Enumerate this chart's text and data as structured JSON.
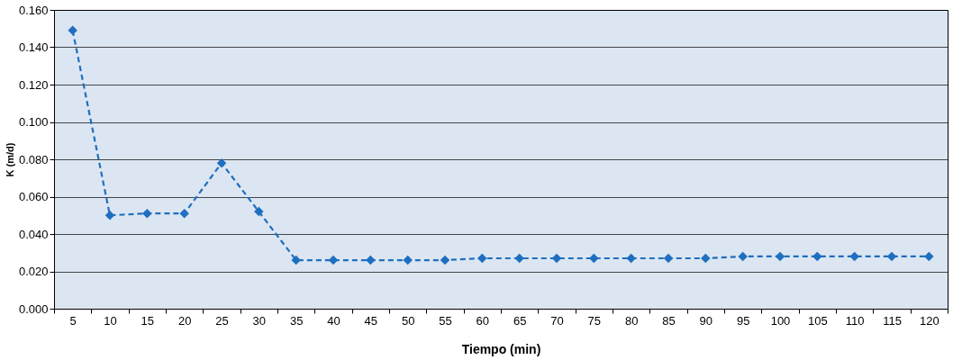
{
  "chart_data": {
    "type": "line",
    "xlabel": "Tiempo (min)",
    "ylabel": "K (m/d)",
    "categories": [
      "5",
      "10",
      "15",
      "20",
      "25",
      "30",
      "35",
      "40",
      "45",
      "50",
      "55",
      "60",
      "65",
      "70",
      "75",
      "80",
      "85",
      "90",
      "95",
      "100",
      "105",
      "110",
      "115",
      "120"
    ],
    "series": [
      {
        "color": "#1f6fc0",
        "values": [
          0.149,
          0.05,
          0.051,
          0.051,
          0.078,
          0.052,
          0.026,
          0.026,
          0.026,
          0.026,
          0.026,
          0.027,
          0.027,
          0.027,
          0.027,
          0.027,
          0.027,
          0.027,
          0.028,
          0.028,
          0.028,
          0.028,
          0.028,
          0.028
        ]
      }
    ],
    "ylim": [
      0,
      0.16
    ],
    "yticks": [
      {
        "value": 0,
        "label": "0.000"
      },
      {
        "value": 0.02,
        "label": "0.020"
      },
      {
        "value": 0.04,
        "label": "0.040"
      },
      {
        "value": 0.06,
        "label": "0.060"
      },
      {
        "value": 0.08,
        "label": "0.080"
      },
      {
        "value": 0.1,
        "label": "0.100"
      },
      {
        "value": 0.12,
        "label": "0.120"
      },
      {
        "value": 0.14,
        "label": "0.140"
      },
      {
        "value": 0.16,
        "label": "0.160"
      }
    ],
    "grid": "y",
    "marker": "diamond",
    "line_style": "dashed"
  }
}
